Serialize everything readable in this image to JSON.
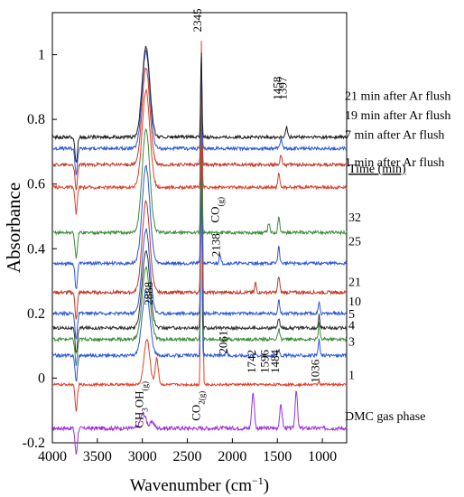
{
  "chart_data": {
    "type": "line",
    "xlabel": "Wavenumber (cm",
    "xlabel_sup": "−1",
    "xlabel_close": ")",
    "ylabel": "Absorbance",
    "xlim": [
      4000,
      730
    ],
    "ylim": [
      -0.2,
      1.13
    ],
    "x_ticks": [
      4000,
      3500,
      3000,
      2500,
      2000,
      1500,
      1000
    ],
    "x_tick_labels": [
      "4000",
      "3500",
      "3000",
      "2500",
      "2000",
      "1500",
      "1000"
    ],
    "y_ticks": [
      -0.2,
      0,
      0.2,
      0.4,
      0.6,
      0.8,
      1
    ],
    "y_tick_labels": [
      "-0.2",
      "0",
      "0.2",
      "0.4",
      "0.6",
      "0.8",
      "1"
    ],
    "grid": false,
    "legend_header": "Time (min)",
    "peak_labels": [
      {
        "text": "2345",
        "x": 2345,
        "y": 1.07
      },
      {
        "text": "2888",
        "x": 2888,
        "y": 0.225
      },
      {
        "text": "2138",
        "x": 2138,
        "y": 0.375
      },
      {
        "text": "2061",
        "x": 2061,
        "y": 0.075
      },
      {
        "text": "1742",
        "x": 1742,
        "y": 0.015
      },
      {
        "text": "1596",
        "x": 1596,
        "y": 0.015
      },
      {
        "text": "1484",
        "x": 1484,
        "y": 0.015
      },
      {
        "text": "1458",
        "x": 1458,
        "y": 0.86
      },
      {
        "text": "1397",
        "x": 1397,
        "y": 0.86
      },
      {
        "text": "1036",
        "x": 1036,
        "y": -0.015
      }
    ],
    "species_labels": [
      {
        "text": "CH",
        "sub": "3",
        "mid": "OH",
        "sub2": "(g)",
        "x": 2990,
        "y": -0.01
      },
      {
        "text": "CO",
        "sub": "2(g)",
        "x": 2360,
        "y": -0.04
      },
      {
        "text": "CO",
        "sub": "(g)",
        "x": 2150,
        "y": 0.56
      }
    ],
    "series": [
      {
        "name": "DMC gas phase",
        "color": "#9b30d9",
        "offset": -0.155,
        "peaks": [
          [
            2990,
            0.045,
            45
          ],
          [
            2890,
            0.02,
            30
          ],
          [
            1770,
            0.11,
            20
          ],
          [
            1460,
            0.07,
            20
          ],
          [
            1290,
            0.12,
            18
          ]
        ],
        "noise": 0.006,
        "label_y": -0.13
      },
      {
        "name": "1",
        "color": "#e0402a",
        "offset": -0.02,
        "peaks": [
          [
            2950,
            0.14,
            45
          ],
          [
            2840,
            0.08,
            25
          ],
          [
            2345,
            1.05,
            10
          ],
          [
            2330,
            0.5,
            8
          ],
          [
            1036,
            0.01,
            12
          ]
        ],
        "noise": 0.004,
        "label_y": -0.003
      },
      {
        "name": "3",
        "color": "#2f57d8",
        "offset": 0.07,
        "peaks": [
          [
            2960,
            0.2,
            60
          ],
          [
            2345,
            0.7,
            10
          ],
          [
            2061,
            0.02,
            10
          ],
          [
            1742,
            0.01,
            12
          ],
          [
            1484,
            0.02,
            15
          ],
          [
            1036,
            0.05,
            12
          ]
        ],
        "noise": 0.005,
        "label_y": 0.1
      },
      {
        "name": "4",
        "color": "#3a8c3a",
        "offset": 0.12,
        "peaks": [
          [
            2960,
            0.22,
            60
          ],
          [
            2345,
            0.65,
            10
          ],
          [
            1484,
            0.03,
            15
          ],
          [
            1036,
            0.05,
            12
          ]
        ],
        "noise": 0.005,
        "label_y": 0.15
      },
      {
        "name": "5",
        "color": "#333333",
        "offset": 0.155,
        "peaks": [
          [
            2960,
            0.24,
            60
          ],
          [
            2345,
            0.62,
            10
          ],
          [
            1484,
            0.03,
            15
          ],
          [
            1036,
            0.04,
            12
          ]
        ],
        "noise": 0.005,
        "label_y": 0.185
      },
      {
        "name": "10",
        "color": "#2f57d8",
        "offset": 0.2,
        "peaks": [
          [
            2960,
            0.26,
            60
          ],
          [
            2345,
            0.6,
            10
          ],
          [
            1484,
            0.04,
            15
          ],
          [
            1036,
            0.04,
            12
          ]
        ],
        "noise": 0.005,
        "label_y": 0.225
      },
      {
        "name": "21",
        "color": "#c0392b",
        "offset": 0.265,
        "peaks": [
          [
            2960,
            0.28,
            60
          ],
          [
            2345,
            0.55,
            10
          ],
          [
            1742,
            0.03,
            12
          ],
          [
            1484,
            0.05,
            15
          ]
        ],
        "noise": 0.005,
        "label_y": 0.285
      },
      {
        "name": "25",
        "color": "#2f57d8",
        "offset": 0.355,
        "peaks": [
          [
            2960,
            0.3,
            60
          ],
          [
            2345,
            0.5,
            10
          ],
          [
            2138,
            0.03,
            12
          ],
          [
            1484,
            0.05,
            15
          ]
        ],
        "noise": 0.005,
        "label_y": 0.41
      },
      {
        "name": "32",
        "color": "#3a8c3a",
        "offset": 0.45,
        "peaks": [
          [
            2960,
            0.32,
            60
          ],
          [
            2345,
            0.45,
            10
          ],
          [
            1596,
            0.03,
            15
          ],
          [
            1484,
            0.05,
            15
          ]
        ],
        "noise": 0.005,
        "label_y": 0.485
      },
      {
        "name": "1 min after Ar flush",
        "color": "#e0402a",
        "offset": 0.59,
        "peaks": [
          [
            2960,
            0.3,
            60
          ],
          [
            2345,
            0.38,
            10
          ],
          [
            1484,
            0.04,
            15
          ]
        ],
        "noise": 0.005,
        "label_y": 0.655
      },
      {
        "name": "7 min after Ar flush",
        "color": "#c0392b",
        "offset": 0.66,
        "peaks": [
          [
            2960,
            0.3,
            60
          ],
          [
            2345,
            0.32,
            10
          ],
          [
            1458,
            0.03,
            15
          ]
        ],
        "noise": 0.005,
        "label_y": 0.74
      },
      {
        "name": "19 min after Ar flush",
        "color": "#2f57d8",
        "offset": 0.71,
        "peaks": [
          [
            2960,
            0.3,
            60
          ],
          [
            2345,
            0.28,
            10
          ],
          [
            1458,
            0.03,
            15
          ]
        ],
        "noise": 0.005,
        "label_y": 0.8
      },
      {
        "name": "21 min after Ar flush",
        "color": "#222222",
        "offset": 0.745,
        "peaks": [
          [
            2960,
            0.28,
            60
          ],
          [
            2345,
            0.26,
            10
          ],
          [
            1397,
            0.03,
            15
          ]
        ],
        "noise": 0.005,
        "label_y": 0.86
      }
    ]
  }
}
